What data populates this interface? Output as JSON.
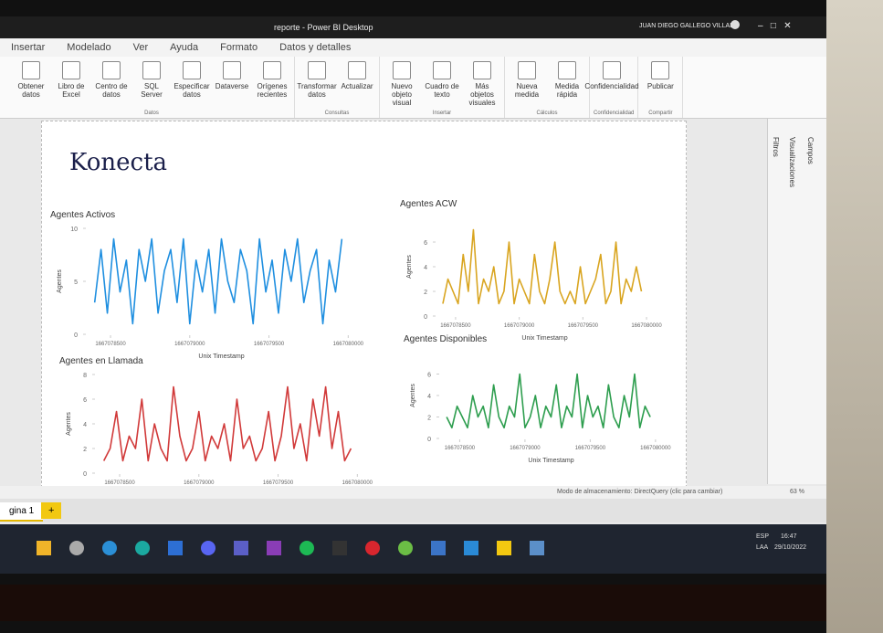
{
  "window": {
    "title": "reporte - Power BI Desktop",
    "user": "JUAN DIEGO GALLEGO VILLADA"
  },
  "ribbon": {
    "tabs": [
      "Insertar",
      "Modelado",
      "Ver",
      "Ayuda",
      "Formato",
      "Datos y detalles"
    ],
    "groups": [
      {
        "name": "Datos",
        "buttons": [
          "Obtener datos",
          "Libro de Excel",
          "Centro de datos",
          "SQL Server",
          "Especificar datos",
          "Dataverse",
          "Orígenes recientes"
        ]
      },
      {
        "name": "Consultas",
        "buttons": [
          "Transformar datos",
          "Actualizar"
        ]
      },
      {
        "name": "Insertar",
        "buttons": [
          "Nuevo objeto visual",
          "Cuadro de texto",
          "Más objetos visuales"
        ]
      },
      {
        "name": "Cálculos",
        "buttons": [
          "Nueva medida",
          "Medida rápida"
        ]
      },
      {
        "name": "Confidencialidad",
        "buttons": [
          "Confidencialidad"
        ]
      },
      {
        "name": "Compartir",
        "buttons": [
          "Publicar"
        ]
      }
    ]
  },
  "panes": [
    "Filtros",
    "Visualizaciones",
    "Campos"
  ],
  "report": {
    "logo": "Konecta"
  },
  "chart_data": [
    {
      "type": "line",
      "title": "Agentes Activos",
      "x_label": "Unix Timestamp",
      "y_label": "Agentes",
      "x": [
        1667078400,
        1667078440,
        1667078480,
        1667078520,
        1667078560,
        1667078600,
        1667078640,
        1667078680,
        1667078720,
        1667078760,
        1667078800,
        1667078840,
        1667078880,
        1667078920,
        1667078960,
        1667079000,
        1667079040,
        1667079080,
        1667079120,
        1667079160,
        1667079200,
        1667079240,
        1667079280,
        1667079320,
        1667079360,
        1667079400,
        1667079440,
        1667079480,
        1667079520,
        1667079560,
        1667079600,
        1667079640,
        1667079680,
        1667079720,
        1667079760,
        1667079800,
        1667079840,
        1667079880,
        1667079920,
        1667079960
      ],
      "series": [
        {
          "color": "#1f8fe0",
          "values": [
            3,
            8,
            2,
            9,
            4,
            7,
            1,
            8,
            5,
            9,
            2,
            6,
            8,
            3,
            9,
            1,
            7,
            4,
            8,
            2,
            9,
            5,
            3,
            8,
            6,
            1,
            9,
            4,
            7,
            2,
            8,
            5,
            9,
            3,
            6,
            8,
            1,
            7,
            4,
            9
          ]
        }
      ],
      "xlim": [
        1667078350,
        1667080050
      ],
      "xticks": [
        1667078500,
        1667079000,
        1667079500,
        1667080000
      ],
      "ylim": [
        0,
        10
      ],
      "yticks": [
        0,
        5,
        10
      ]
    },
    {
      "type": "line",
      "title": "Agentes ACW",
      "x_label": "Unix Timestamp",
      "y_label": "Agentes",
      "x": [
        1667078400,
        1667078440,
        1667078480,
        1667078520,
        1667078560,
        1667078600,
        1667078640,
        1667078680,
        1667078720,
        1667078760,
        1667078800,
        1667078840,
        1667078880,
        1667078920,
        1667078960,
        1667079000,
        1667079040,
        1667079080,
        1667079120,
        1667079160,
        1667079200,
        1667079240,
        1667079280,
        1667079320,
        1667079360,
        1667079400,
        1667079440,
        1667079480,
        1667079520,
        1667079560,
        1667079600,
        1667079640,
        1667079680,
        1667079720,
        1667079760,
        1667079800,
        1667079840,
        1667079880,
        1667079920,
        1667079960
      ],
      "series": [
        {
          "color": "#d9a520",
          "values": [
            1,
            3,
            2,
            1,
            5,
            2,
            7,
            1,
            3,
            2,
            4,
            1,
            2,
            6,
            1,
            3,
            2,
            1,
            5,
            2,
            1,
            3,
            6,
            2,
            1,
            2,
            1,
            4,
            1,
            2,
            3,
            5,
            1,
            2,
            6,
            1,
            3,
            2,
            4,
            2
          ]
        }
      ],
      "xlim": [
        1667078350,
        1667080050
      ],
      "xticks": [
        1667078500,
        1667079000,
        1667079500,
        1667080000
      ],
      "ylim": [
        0,
        8
      ],
      "yticks": [
        0,
        2,
        4,
        6
      ]
    },
    {
      "type": "line",
      "title": "Agentes en Llamada",
      "x_label": "Unix Timestamp",
      "y_label": "Agentes",
      "x": [
        1667078400,
        1667078440,
        1667078480,
        1667078520,
        1667078560,
        1667078600,
        1667078640,
        1667078680,
        1667078720,
        1667078760,
        1667078800,
        1667078840,
        1667078880,
        1667078920,
        1667078960,
        1667079000,
        1667079040,
        1667079080,
        1667079120,
        1667079160,
        1667079200,
        1667079240,
        1667079280,
        1667079320,
        1667079360,
        1667079400,
        1667079440,
        1667079480,
        1667079520,
        1667079560,
        1667079600,
        1667079640,
        1667079680,
        1667079720,
        1667079760,
        1667079800,
        1667079840,
        1667079880,
        1667079920,
        1667079960
      ],
      "series": [
        {
          "color": "#d13a3a",
          "values": [
            1,
            2,
            5,
            1,
            3,
            2,
            6,
            1,
            4,
            2,
            1,
            7,
            3,
            1,
            2,
            5,
            1,
            3,
            2,
            4,
            1,
            6,
            2,
            3,
            1,
            2,
            5,
            1,
            3,
            7,
            2,
            4,
            1,
            6,
            3,
            7,
            2,
            5,
            1,
            2
          ]
        }
      ],
      "xlim": [
        1667078350,
        1667080050
      ],
      "xticks": [
        1667078500,
        1667079000,
        1667079500,
        1667080000
      ],
      "ylim": [
        0,
        8
      ],
      "yticks": [
        0,
        2,
        4,
        6,
        8
      ]
    },
    {
      "type": "line",
      "title": "Agentes Disponibles",
      "x_label": "Unix Timestamp",
      "y_label": "Agentes",
      "x": [
        1667078400,
        1667078440,
        1667078480,
        1667078520,
        1667078560,
        1667078600,
        1667078640,
        1667078680,
        1667078720,
        1667078760,
        1667078800,
        1667078840,
        1667078880,
        1667078920,
        1667078960,
        1667079000,
        1667079040,
        1667079080,
        1667079120,
        1667079160,
        1667079200,
        1667079240,
        1667079280,
        1667079320,
        1667079360,
        1667079400,
        1667079440,
        1667079480,
        1667079520,
        1667079560,
        1667079600,
        1667079640,
        1667079680,
        1667079720,
        1667079760,
        1667079800,
        1667079840,
        1667079880,
        1667079920,
        1667079960
      ],
      "series": [
        {
          "color": "#2e9e4f",
          "values": [
            2,
            1,
            3,
            2,
            1,
            4,
            2,
            3,
            1,
            5,
            2,
            1,
            3,
            2,
            6,
            1,
            2,
            4,
            1,
            3,
            2,
            5,
            1,
            3,
            2,
            6,
            1,
            4,
            2,
            3,
            1,
            5,
            2,
            1,
            4,
            2,
            6,
            1,
            3,
            2
          ]
        }
      ],
      "xlim": [
        1667078350,
        1667080050
      ],
      "xticks": [
        1667078500,
        1667079000,
        1667079500,
        1667080000
      ],
      "ylim": [
        0,
        8
      ],
      "yticks": [
        0,
        2,
        4,
        6
      ]
    }
  ],
  "status": {
    "storage": "Modo de almacenamiento: DirectQuery (clic para cambiar)",
    "zoom": "63 %"
  },
  "page_tab": "gina 1",
  "taskbar": {
    "language": "ESP",
    "layout": "LAA",
    "time": "16:47",
    "date": "29/10/2022"
  }
}
